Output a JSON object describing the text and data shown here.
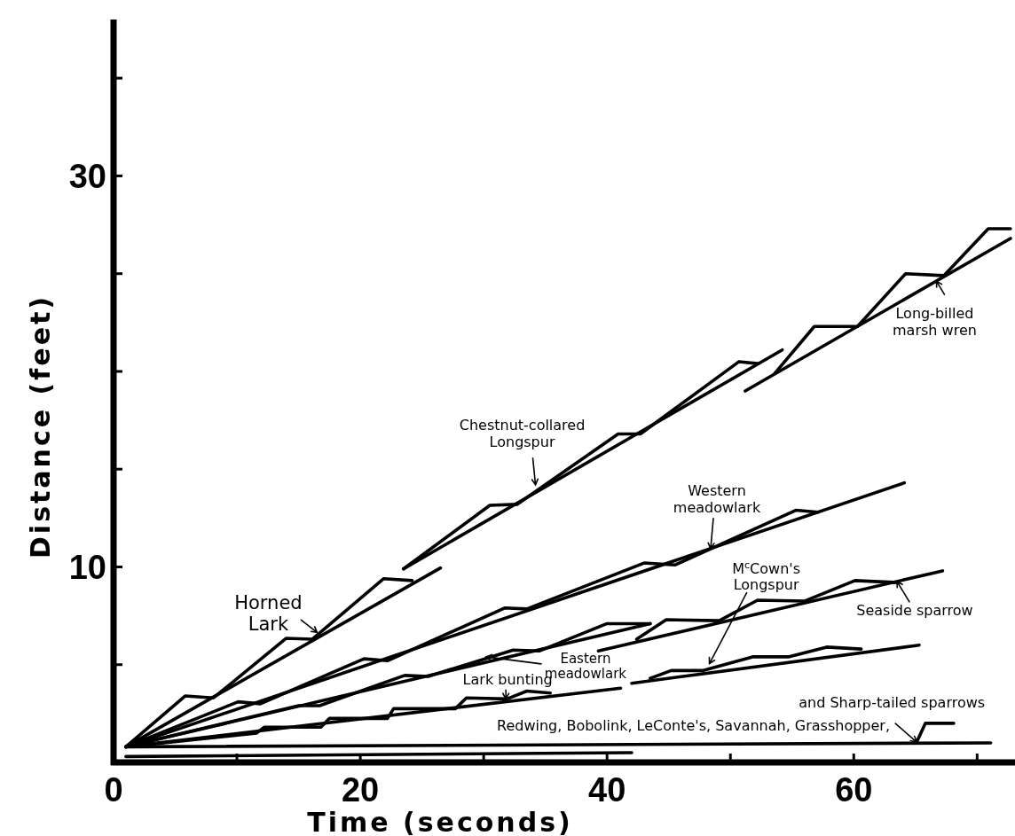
{
  "chart_data": {
    "type": "line",
    "xlabel": "Time (seconds)",
    "ylabel": "Distance (feet)",
    "xlim": [
      0,
      73.5
    ],
    "ylim": [
      0,
      38
    ],
    "xticks": [
      0,
      {
        "value": 10,
        "label": null
      },
      20,
      {
        "value": 30,
        "label": null
      },
      40,
      {
        "value": 50,
        "label": null
      },
      60,
      {
        "value": 70,
        "label": null
      }
    ],
    "yticks": [
      {
        "value": 5,
        "label": null
      },
      10,
      {
        "value": 15,
        "label": null
      },
      {
        "value": 20,
        "label": null
      },
      {
        "value": 25,
        "label": null
      },
      30,
      {
        "value": 35,
        "label": null
      }
    ],
    "grid": false,
    "series": [
      {
        "color": "#000000",
        "x": [
          1,
          26.5
        ],
        "values": [
          0.8,
          9.95
        ]
      },
      {
        "color": "#000000",
        "x": [
          1,
          5.8,
          8.1,
          14,
          16.1,
          21.9,
          24.2
        ],
        "values": [
          0.8,
          3.4,
          3.3,
          6.35,
          6.3,
          9.4,
          9.3
        ]
      },
      {
        "color": "#000000",
        "x": [
          23.5,
          54.2
        ],
        "values": [
          9.9,
          21.1
        ]
      },
      {
        "color": "#000000",
        "x": [
          23.5,
          30.5,
          32.7,
          40.9,
          42.7,
          50.7,
          52.2
        ],
        "values": [
          9.9,
          13.15,
          13.2,
          16.8,
          16.8,
          20.5,
          20.4
        ]
      },
      {
        "color": "#000000",
        "x": [
          51.2,
          72.7
        ],
        "values": [
          19.0,
          26.8
        ]
      },
      {
        "color": "#000000",
        "x": [
          53.6,
          56.8,
          60.3,
          64.2,
          67.3,
          70.9,
          72.7
        ],
        "values": [
          19.9,
          22.3,
          22.3,
          25.0,
          24.9,
          27.3,
          27.3
        ]
      },
      {
        "color": "#000000",
        "x": [
          1,
          64.1
        ],
        "values": [
          0.8,
          14.3
        ]
      },
      {
        "color": "#000000",
        "x": [
          1,
          10.1,
          11.9,
          20.3,
          22.2,
          31.7,
          33.5,
          43.0,
          45.5,
          55.3,
          57.1
        ],
        "values": [
          0.8,
          3.1,
          3.0,
          5.3,
          5.2,
          7.9,
          7.85,
          10.2,
          10.1,
          12.9,
          12.8
        ]
      },
      {
        "color": "#000000",
        "x": [
          1,
          43.5
        ],
        "values": [
          0.8,
          7.1
        ]
      },
      {
        "color": "#000000",
        "x": [
          1,
          15.0,
          16.7,
          23.6,
          25.5,
          32.4,
          34.5,
          40.0,
          43.5
        ],
        "values": [
          0.8,
          2.9,
          2.9,
          4.45,
          4.4,
          5.75,
          5.7,
          7.1,
          7.1
        ]
      },
      {
        "color": "#000000",
        "x": [
          39.3,
          67.2
        ],
        "values": [
          5.7,
          9.8
        ]
      },
      {
        "color": "#000000",
        "x": [
          42.4,
          44.8,
          49.1,
          52.2,
          56.0,
          60.1,
          63.6
        ],
        "values": [
          6.3,
          7.3,
          7.25,
          8.3,
          8.25,
          9.3,
          9.2
        ]
      },
      {
        "color": "#000000",
        "x": [
          42.0,
          65.3
        ],
        "values": [
          4.05,
          6.0
        ]
      },
      {
        "color": "#000000",
        "x": [
          43.5,
          45.2,
          47.8,
          51.8,
          54.7,
          57.8,
          60.6
        ],
        "values": [
          4.3,
          4.7,
          4.7,
          5.4,
          5.4,
          5.9,
          5.8
        ]
      },
      {
        "color": "#000000",
        "x": [
          1,
          41.1
        ],
        "values": [
          0.8,
          3.8
        ]
      },
      {
        "color": "#000000",
        "x": [
          1,
          11.6,
          12.2,
          16.8,
          17.5,
          22.2,
          22.7,
          27.7,
          28.6,
          31.9,
          33.5,
          35.4
        ],
        "values": [
          0.8,
          1.5,
          1.8,
          1.8,
          2.25,
          2.25,
          2.75,
          2.75,
          3.3,
          3.25,
          3.65,
          3.55
        ]
      },
      {
        "color": "#000000",
        "x": [
          1,
          71.1
        ],
        "values": [
          0.8,
          1.0
        ]
      },
      {
        "color": "#000000",
        "x": [
          65.1,
          65.8,
          68.1
        ],
        "values": [
          1.04,
          2.0,
          2.0
        ]
      },
      {
        "color": "#000000",
        "x": [
          1,
          42
        ],
        "values": [
          0.3,
          0.5
        ]
      }
    ],
    "annotations": [
      {
        "text": "Horned\nLark",
        "x": 16.5,
        "y": 6.65
      },
      {
        "text": "Chestnut-collared\nLongspur",
        "x": 34.2,
        "y": 14.2
      },
      {
        "text": "Long-billed\nmarsh wren",
        "x": 66.7,
        "y": 24.62
      },
      {
        "text": "Western\nmeadowlark",
        "x": 48.4,
        "y": 10.94
      },
      {
        "text": "Eastern\nmeadowlark",
        "x": 30.2,
        "y": 5.4
      },
      {
        "text": "M$^{c}$Cown's\nLongspur",
        "x": 48.3,
        "y": 5.05
      },
      {
        "text": "Seaside sparrow",
        "x": 63.5,
        "y": 9.26
      },
      {
        "text": "Lark bunting",
        "x": 31.8,
        "y": 3.25
      },
      {
        "text": "Redwing, Bobolink, LeConte's, Savannah, Grasshopper,",
        "x": 47,
        "y": 1.0
      },
      {
        "text": "and Sharp-tailed sparrows",
        "x": 65.1,
        "y": 1.04
      }
    ]
  }
}
